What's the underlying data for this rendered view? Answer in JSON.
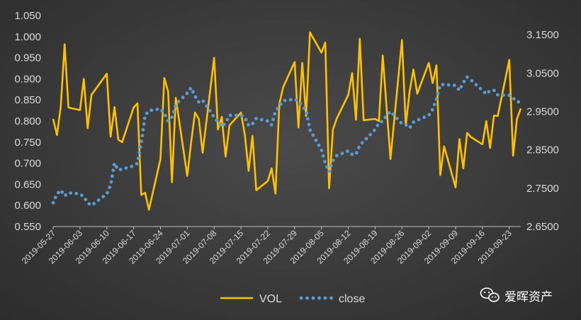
{
  "chart_data": {
    "type": "line",
    "legend_position": "bottom",
    "grid": false,
    "colors": {
      "vol": "#FFC000",
      "close": "#5B9BD5",
      "text": "#D9D9D9"
    },
    "left_axis": {
      "min": 0.55,
      "max": 1.05,
      "ticks": [
        "0.550",
        "0.600",
        "0.650",
        "0.700",
        "0.750",
        "0.800",
        "0.850",
        "0.900",
        "0.950",
        "1.000",
        "1.050"
      ]
    },
    "right_axis": {
      "min": 2.65,
      "max": 3.2,
      "ticks": [
        "2.6500",
        "2.7500",
        "2.8500",
        "2.9500",
        "3.0500",
        "3.1500"
      ]
    },
    "x_tick_labels": [
      "2019-05-27",
      "2019-06-03",
      "2019-06-10",
      "2019-06-17",
      "2019-06-24",
      "2019-07-01",
      "2019-07-08",
      "2019-07-15",
      "2019-07-22",
      "2019-07-29",
      "2019-08-05",
      "2019-08-12",
      "2019-08-19",
      "2019-08-26",
      "2019-09-02",
      "2019-09-09",
      "2019-09-16",
      "2019-09-23"
    ],
    "series": [
      {
        "name": "VOL",
        "axis": "left",
        "style": "solid",
        "points": [
          [
            "2019-05-27",
            0.805
          ],
          [
            "2019-05-28",
            0.767
          ],
          [
            "2019-05-29",
            0.835
          ],
          [
            "2019-05-30",
            0.982
          ],
          [
            "2019-05-31",
            0.832
          ],
          [
            "2019-06-03",
            0.826
          ],
          [
            "2019-06-04",
            0.9
          ],
          [
            "2019-06-05",
            0.783
          ],
          [
            "2019-06-06",
            0.862
          ],
          [
            "2019-06-10",
            0.912
          ],
          [
            "2019-06-11",
            0.763
          ],
          [
            "2019-06-12",
            0.833
          ],
          [
            "2019-06-13",
            0.756
          ],
          [
            "2019-06-14",
            0.75
          ],
          [
            "2019-06-17",
            0.832
          ],
          [
            "2019-06-18",
            0.842
          ],
          [
            "2019-06-19",
            0.625
          ],
          [
            "2019-06-20",
            0.63
          ],
          [
            "2019-06-21",
            0.59
          ],
          [
            "2019-06-24",
            0.71
          ],
          [
            "2019-06-25",
            0.902
          ],
          [
            "2019-06-26",
            0.87
          ],
          [
            "2019-06-27",
            0.655
          ],
          [
            "2019-06-28",
            0.855
          ],
          [
            "2019-07-01",
            0.67
          ],
          [
            "2019-07-02",
            0.75
          ],
          [
            "2019-07-03",
            0.82
          ],
          [
            "2019-07-04",
            0.805
          ],
          [
            "2019-07-05",
            0.725
          ],
          [
            "2019-07-08",
            0.95
          ],
          [
            "2019-07-09",
            0.78
          ],
          [
            "2019-07-10",
            0.81
          ],
          [
            "2019-07-11",
            0.716
          ],
          [
            "2019-07-12",
            0.79
          ],
          [
            "2019-07-15",
            0.82
          ],
          [
            "2019-07-16",
            0.768
          ],
          [
            "2019-07-17",
            0.682
          ],
          [
            "2019-07-18",
            0.765
          ],
          [
            "2019-07-19",
            0.636
          ],
          [
            "2019-07-22",
            0.658
          ],
          [
            "2019-07-23",
            0.688
          ],
          [
            "2019-07-24",
            0.628
          ],
          [
            "2019-07-25",
            0.84
          ],
          [
            "2019-07-26",
            0.88
          ],
          [
            "2019-07-29",
            0.94
          ],
          [
            "2019-07-30",
            0.785
          ],
          [
            "2019-07-31",
            0.938
          ],
          [
            "2019-08-01",
            0.812
          ],
          [
            "2019-08-02",
            1.01
          ],
          [
            "2019-08-05",
            0.962
          ],
          [
            "2019-08-06",
            0.986
          ],
          [
            "2019-08-07",
            0.641
          ],
          [
            "2019-08-08",
            0.78
          ],
          [
            "2019-08-09",
            0.806
          ],
          [
            "2019-08-12",
            0.862
          ],
          [
            "2019-08-13",
            0.914
          ],
          [
            "2019-08-14",
            0.803
          ],
          [
            "2019-08-15",
            0.995
          ],
          [
            "2019-08-16",
            0.802
          ],
          [
            "2019-08-19",
            0.805
          ],
          [
            "2019-08-20",
            0.8
          ],
          [
            "2019-08-21",
            0.955
          ],
          [
            "2019-08-22",
            0.83
          ],
          [
            "2019-08-23",
            0.71
          ],
          [
            "2019-08-26",
            0.992
          ],
          [
            "2019-08-27",
            0.79
          ],
          [
            "2019-08-28",
            0.87
          ],
          [
            "2019-08-29",
            0.922
          ],
          [
            "2019-08-30",
            0.865
          ],
          [
            "2019-09-02",
            0.938
          ],
          [
            "2019-09-03",
            0.89
          ],
          [
            "2019-09-04",
            0.932
          ],
          [
            "2019-09-05",
            0.672
          ],
          [
            "2019-09-06",
            0.74
          ],
          [
            "2019-09-09",
            0.643
          ],
          [
            "2019-09-10",
            0.757
          ],
          [
            "2019-09-11",
            0.688
          ],
          [
            "2019-09-12",
            0.772
          ],
          [
            "2019-09-13",
            0.762
          ],
          [
            "2019-09-16",
            0.745
          ],
          [
            "2019-09-17",
            0.8
          ],
          [
            "2019-09-18",
            0.736
          ],
          [
            "2019-09-19",
            0.813
          ],
          [
            "2019-09-20",
            0.812
          ],
          [
            "2019-09-23",
            0.945
          ],
          [
            "2019-09-24",
            0.718
          ],
          [
            "2019-09-25",
            0.805
          ],
          [
            "2019-09-26",
            0.83
          ]
        ]
      },
      {
        "name": "close",
        "axis": "right",
        "style": "dotted",
        "points": [
          [
            "2019-05-27",
            2.712
          ],
          [
            "2019-05-28",
            2.735
          ],
          [
            "2019-05-29",
            2.745
          ],
          [
            "2019-05-30",
            2.73
          ],
          [
            "2019-05-31",
            2.738
          ],
          [
            "2019-06-03",
            2.735
          ],
          [
            "2019-06-04",
            2.728
          ],
          [
            "2019-06-05",
            2.712
          ],
          [
            "2019-06-06",
            2.705
          ],
          [
            "2019-06-10",
            2.735
          ],
          [
            "2019-06-11",
            2.758
          ],
          [
            "2019-06-12",
            2.815
          ],
          [
            "2019-06-13",
            2.797
          ],
          [
            "2019-06-14",
            2.8
          ],
          [
            "2019-06-17",
            2.808
          ],
          [
            "2019-06-18",
            2.815
          ],
          [
            "2019-06-19",
            2.87
          ],
          [
            "2019-06-20",
            2.94
          ],
          [
            "2019-06-21",
            2.952
          ],
          [
            "2019-06-24",
            2.957
          ],
          [
            "2019-06-25",
            2.945
          ],
          [
            "2019-06-26",
            2.925
          ],
          [
            "2019-06-27",
            2.935
          ],
          [
            "2019-06-28",
            2.968
          ],
          [
            "2019-07-01",
            2.998
          ],
          [
            "2019-07-02",
            3.012
          ],
          [
            "2019-07-03",
            2.99
          ],
          [
            "2019-07-04",
            2.975
          ],
          [
            "2019-07-05",
            2.98
          ],
          [
            "2019-07-08",
            2.935
          ],
          [
            "2019-07-09",
            2.922
          ],
          [
            "2019-07-10",
            2.91
          ],
          [
            "2019-07-11",
            2.92
          ],
          [
            "2019-07-12",
            2.94
          ],
          [
            "2019-07-15",
            2.94
          ],
          [
            "2019-07-16",
            2.935
          ],
          [
            "2019-07-17",
            2.913
          ],
          [
            "2019-07-18",
            2.917
          ],
          [
            "2019-07-19",
            2.932
          ],
          [
            "2019-07-22",
            2.925
          ],
          [
            "2019-07-23",
            2.915
          ],
          [
            "2019-07-24",
            2.95
          ],
          [
            "2019-07-25",
            2.963
          ],
          [
            "2019-07-26",
            2.978
          ],
          [
            "2019-07-29",
            2.982
          ],
          [
            "2019-07-30",
            2.977
          ],
          [
            "2019-07-31",
            2.963
          ],
          [
            "2019-08-01",
            2.953
          ],
          [
            "2019-08-02",
            2.902
          ],
          [
            "2019-08-05",
            2.85
          ],
          [
            "2019-08-06",
            2.815
          ],
          [
            "2019-08-07",
            2.793
          ],
          [
            "2019-08-08",
            2.822
          ],
          [
            "2019-08-09",
            2.835
          ],
          [
            "2019-08-12",
            2.847
          ],
          [
            "2019-08-13",
            2.838
          ],
          [
            "2019-08-14",
            2.838
          ],
          [
            "2019-08-15",
            2.862
          ],
          [
            "2019-08-16",
            2.872
          ],
          [
            "2019-08-19",
            2.903
          ],
          [
            "2019-08-20",
            2.92
          ],
          [
            "2019-08-21",
            2.925
          ],
          [
            "2019-08-22",
            2.94
          ],
          [
            "2019-08-23",
            2.95
          ],
          [
            "2019-08-26",
            2.918
          ],
          [
            "2019-08-27",
            2.915
          ],
          [
            "2019-08-28",
            2.907
          ],
          [
            "2019-08-29",
            2.922
          ],
          [
            "2019-08-30",
            2.927
          ],
          [
            "2019-09-02",
            2.94
          ],
          [
            "2019-09-03",
            2.955
          ],
          [
            "2019-09-04",
            2.982
          ],
          [
            "2019-09-05",
            3.02
          ],
          [
            "2019-09-06",
            3.02
          ],
          [
            "2019-09-09",
            3.018
          ],
          [
            "2019-09-10",
            3.005
          ],
          [
            "2019-09-11",
            3.025
          ],
          [
            "2019-09-12",
            3.04
          ],
          [
            "2019-09-13",
            3.032
          ],
          [
            "2019-09-16",
            3.005
          ],
          [
            "2019-09-17",
            2.995
          ],
          [
            "2019-09-18",
            3.005
          ],
          [
            "2019-09-19",
            3.005
          ],
          [
            "2019-09-20",
            2.993
          ],
          [
            "2019-09-23",
            2.992
          ],
          [
            "2019-09-24",
            2.985
          ],
          [
            "2019-09-25",
            2.975
          ],
          [
            "2019-09-26",
            2.975
          ]
        ]
      }
    ]
  },
  "watermark": {
    "icon": "wechat-icon",
    "text": "爱晖资产"
  }
}
